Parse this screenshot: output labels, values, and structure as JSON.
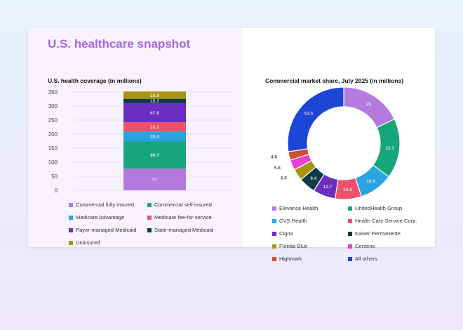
{
  "page": {
    "title": "U.S. healthcare snapshot"
  },
  "chart_data": [
    {
      "type": "bar",
      "stacked": true,
      "title": "U.S. health coverage (in millions)",
      "ylim": [
        0,
        350
      ],
      "yticks": [
        0,
        50,
        100,
        150,
        200,
        250,
        300,
        350
      ],
      "grid": true,
      "legend_position": "bottom",
      "series": [
        {
          "name": "Commercial fully insured",
          "value": 77,
          "label": "77",
          "color": "#b47ae0"
        },
        {
          "name": "Commercial self-insured",
          "value": 96.7,
          "label": "96.7",
          "color": "#17a67a"
        },
        {
          "name": "Medicare Advantage",
          "value": 35.4,
          "label": "35.4",
          "color": "#2aa3e0"
        },
        {
          "name": "Medicare fee-for-service",
          "value": 33.1,
          "label": "33.1",
          "color": "#f0506a"
        },
        {
          "name": "Payer-managed Medicaid",
          "value": 67.9,
          "label": "67.9",
          "color": "#6a2ec2"
        },
        {
          "name": "State-managed Medicaid",
          "value": 15.7,
          "label": "15.7",
          "color": "#0d3b4a"
        },
        {
          "name": "Uninsured",
          "value": 25.9,
          "label": "25.9",
          "color": "#a89410"
        }
      ]
    },
    {
      "type": "pie",
      "donut": true,
      "title": "Commercial market share, July 2025 (in millions)",
      "legend_position": "bottom",
      "slices": [
        {
          "name": "Elevance Health",
          "value": 35,
          "label": "35",
          "color": "#b47ae0"
        },
        {
          "name": "UnitedHealth Group",
          "value": 33.7,
          "label": "33.7",
          "color": "#17a67a"
        },
        {
          "name": "CVS Health",
          "value": 18.9,
          "label": "18.9",
          "color": "#2aa3e0"
        },
        {
          "name": "Health Care Service Corp.",
          "value": 14.8,
          "label": "14.8",
          "color": "#f0506a"
        },
        {
          "name": "Cigna",
          "value": 12.7,
          "label": "12.7",
          "color": "#6a2ec2"
        },
        {
          "name": "Kaiser Permanente",
          "value": 9.4,
          "label": "9.4",
          "color": "#0d3b4a"
        },
        {
          "name": "Florida Blue",
          "value": 6.6,
          "label": "6.6",
          "color": "#a89410"
        },
        {
          "name": "Centene",
          "value": 5.8,
          "label": "5.8",
          "color": "#e83fd6"
        },
        {
          "name": "Highmark",
          "value": 4.8,
          "label": "4.8",
          "color": "#d0502a"
        },
        {
          "name": "All others",
          "value": 53.5,
          "label": "53.5",
          "color": "#1d46d6"
        }
      ]
    }
  ]
}
